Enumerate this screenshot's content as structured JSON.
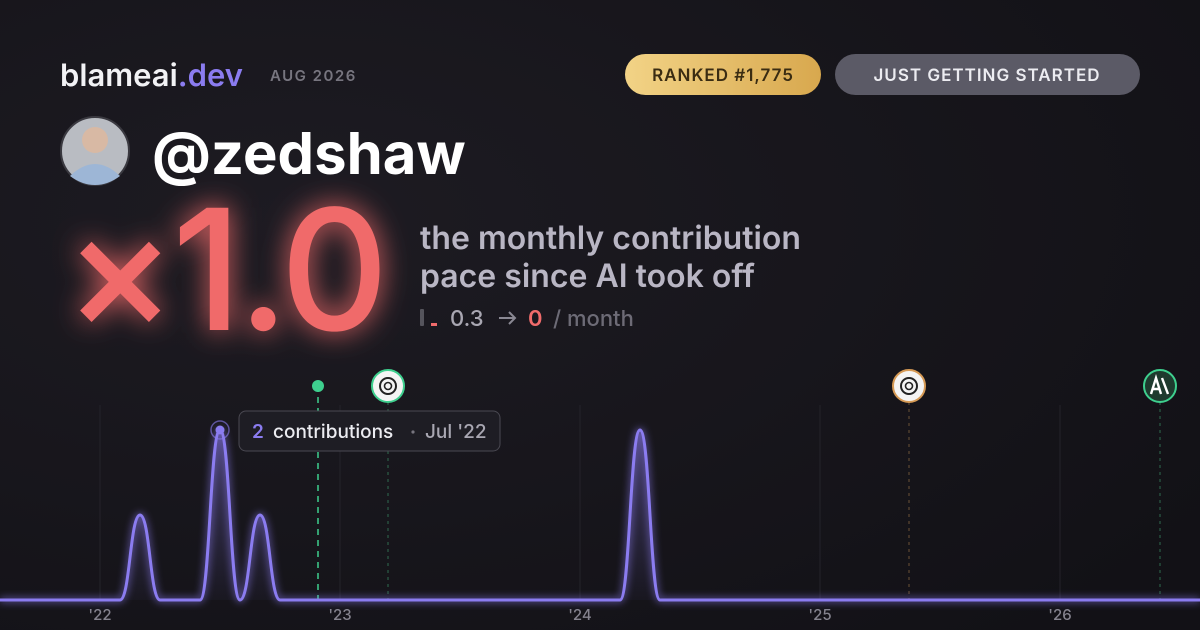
{
  "header": {
    "brand": "blameai",
    "brand_suffix": ".dev",
    "date": "AUG 2026",
    "rank_badge": "RANKED #1,775",
    "status_badge": "JUST GETTING STARTED"
  },
  "profile": {
    "username": "@zedshaw"
  },
  "stat": {
    "multiplier": "×1.0",
    "description_line1": "the monthly contribution",
    "description_line2": "pace since AI took off",
    "before": 0.3,
    "after": 0,
    "unit": "/ month"
  },
  "chart_data": {
    "type": "line",
    "color": "#8b7cf0",
    "categories": [
      null,
      null,
      null,
      null,
      null,
      "'22",
      null,
      null,
      null,
      null,
      null,
      null,
      null,
      null,
      null,
      null,
      null,
      "'23",
      null,
      null,
      null,
      null,
      null,
      null,
      null,
      null,
      null,
      null,
      null,
      "'24",
      null,
      null,
      null,
      null,
      null,
      null,
      null,
      null,
      null,
      null,
      null,
      "'25",
      null,
      null,
      null,
      null,
      null,
      null,
      null,
      null,
      null,
      null,
      null,
      "'26",
      null,
      null,
      null,
      null,
      null,
      null,
      null
    ],
    "values": [
      0,
      0,
      0,
      0,
      0,
      0,
      0,
      1,
      0,
      0,
      0,
      2,
      0,
      1,
      0,
      0,
      0,
      0,
      0,
      0,
      0,
      0,
      0,
      0,
      0,
      0,
      0,
      0,
      0,
      0,
      0,
      0,
      2,
      0,
      0,
      0,
      0,
      0,
      0,
      0,
      0,
      0,
      0,
      0,
      0,
      0,
      0,
      0,
      0,
      0,
      0,
      0,
      0,
      0,
      0,
      0,
      0,
      0,
      0,
      0,
      0
    ],
    "ylim": [
      0,
      2
    ],
    "tooltip": {
      "label": "contributions",
      "date": "Jul '22"
    }
  }
}
